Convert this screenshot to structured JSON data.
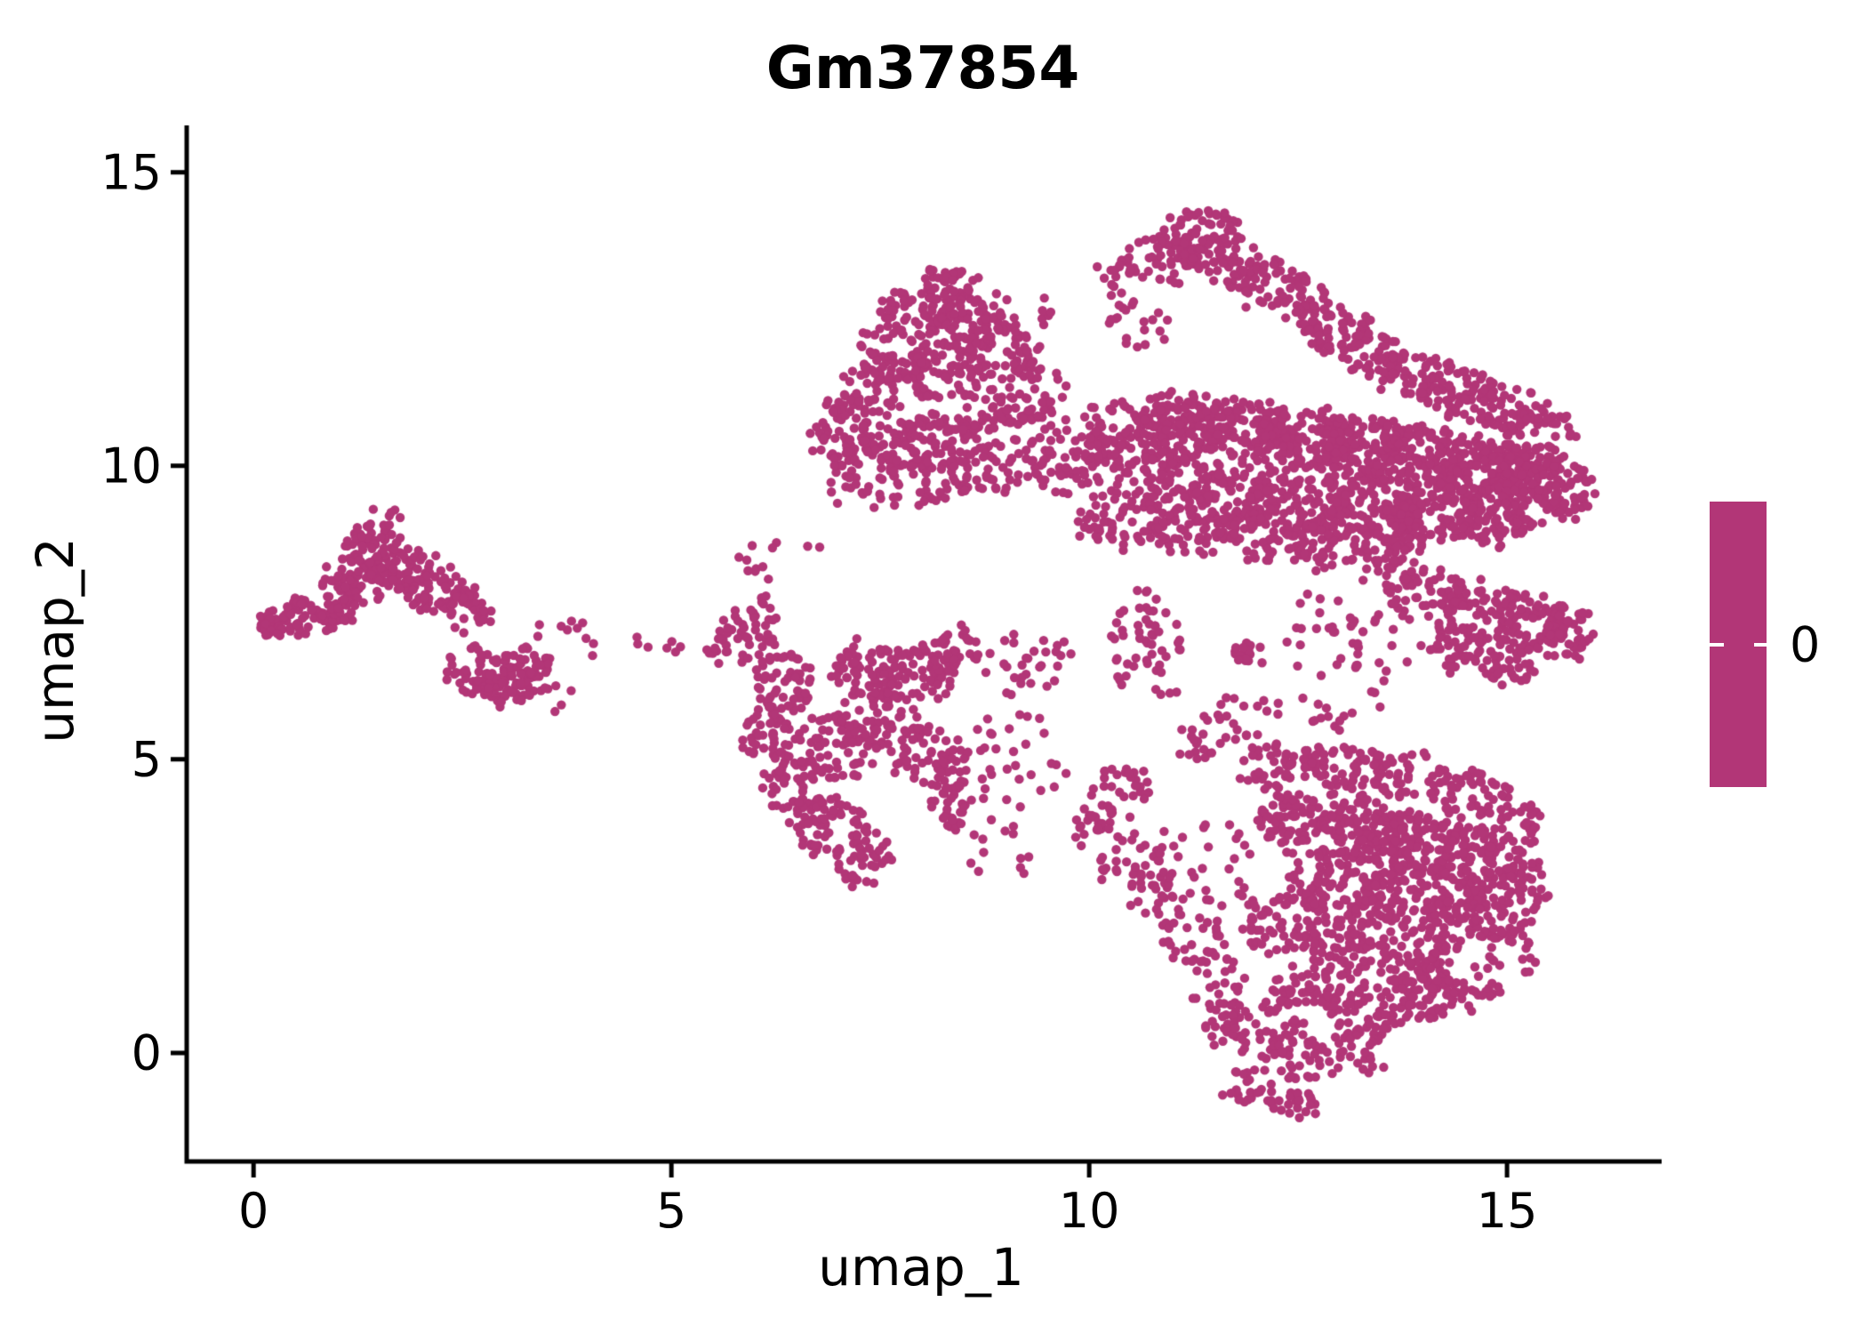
{
  "chart_data": {
    "type": "scatter",
    "title": "Gm37854",
    "xlabel": "umap_1",
    "ylabel": "umap_2",
    "xlim": [
      -0.8,
      16.85
    ],
    "ylim": [
      -1.85,
      15.8
    ],
    "xticks": [
      0,
      5,
      10,
      15
    ],
    "yticks": [
      0,
      5,
      10,
      15
    ],
    "grid": false,
    "point_color": "#b23677",
    "point_radius_px": 5.2,
    "axis_color": "#000000",
    "background_color": "#ffffff",
    "colorbar": {
      "present": true,
      "color": "#b23677",
      "tick_label": "0",
      "position": "right"
    },
    "cluster_format": [
      "cx",
      "cy",
      "rx",
      "ry",
      "n"
    ],
    "clusters": [
      [
        0.35,
        7.3,
        0.28,
        0.22,
        45
      ],
      [
        0.75,
        7.5,
        0.4,
        0.3,
        55
      ],
      [
        1.2,
        8.0,
        0.4,
        0.45,
        60
      ],
      [
        1.4,
        8.65,
        0.35,
        0.4,
        55
      ],
      [
        1.6,
        9.15,
        0.25,
        0.12,
        6
      ],
      [
        1.75,
        8.25,
        0.45,
        0.4,
        65
      ],
      [
        2.2,
        7.9,
        0.45,
        0.4,
        60
      ],
      [
        2.55,
        7.5,
        0.3,
        0.3,
        30
      ],
      [
        2.7,
        6.5,
        0.4,
        0.45,
        55
      ],
      [
        3.05,
        6.25,
        0.4,
        0.35,
        55
      ],
      [
        3.35,
        6.65,
        0.25,
        0.3,
        25
      ],
      [
        3.9,
        7.1,
        0.55,
        0.35,
        10
      ],
      [
        3.55,
        6.05,
        0.3,
        0.25,
        8
      ],
      [
        4.6,
        6.95,
        0.15,
        0.12,
        3
      ],
      [
        5.95,
        7.2,
        0.3,
        0.6,
        40
      ],
      [
        5.6,
        6.9,
        0.18,
        0.35,
        15
      ],
      [
        5.05,
        6.9,
        0.12,
        0.12,
        4
      ],
      [
        6.35,
        6.3,
        0.4,
        0.5,
        55
      ],
      [
        6.2,
        5.4,
        0.35,
        0.5,
        45
      ],
      [
        6.5,
        4.6,
        0.4,
        0.5,
        50
      ],
      [
        6.9,
        3.85,
        0.45,
        0.5,
        55
      ],
      [
        7.3,
        3.3,
        0.35,
        0.45,
        40
      ],
      [
        7.0,
        5.2,
        0.5,
        0.6,
        65
      ],
      [
        7.55,
        5.7,
        0.5,
        0.6,
        65
      ],
      [
        7.35,
        6.6,
        0.45,
        0.5,
        55
      ],
      [
        7.9,
        6.35,
        0.45,
        0.5,
        55
      ],
      [
        8.1,
        5.0,
        0.45,
        0.6,
        55
      ],
      [
        8.35,
        4.2,
        0.3,
        0.4,
        30
      ],
      [
        8.3,
        6.9,
        0.4,
        0.4,
        40
      ],
      [
        9.0,
        5.1,
        0.8,
        0.8,
        35
      ],
      [
        9.35,
        6.6,
        0.6,
        0.6,
        30
      ],
      [
        8.9,
        3.6,
        0.5,
        0.7,
        14
      ],
      [
        6.3,
        8.5,
        0.7,
        0.4,
        12
      ],
      [
        8.35,
        13.05,
        0.4,
        0.3,
        45
      ],
      [
        8.0,
        12.65,
        0.5,
        0.4,
        60
      ],
      [
        8.65,
        12.4,
        0.5,
        0.4,
        55
      ],
      [
        7.7,
        11.9,
        0.5,
        0.5,
        60
      ],
      [
        8.3,
        11.6,
        0.55,
        0.5,
        70
      ],
      [
        8.95,
        11.9,
        0.45,
        0.45,
        50
      ],
      [
        7.3,
        11.15,
        0.45,
        0.5,
        50
      ],
      [
        7.05,
        10.45,
        0.35,
        0.55,
        45
      ],
      [
        7.6,
        10.3,
        0.5,
        0.5,
        60
      ],
      [
        8.25,
        10.5,
        0.5,
        0.5,
        60
      ],
      [
        8.85,
        10.75,
        0.5,
        0.5,
        55
      ],
      [
        9.3,
        11.25,
        0.4,
        0.5,
        40
      ],
      [
        9.15,
        12.6,
        0.4,
        0.4,
        18
      ],
      [
        7.95,
        9.7,
        0.6,
        0.4,
        50
      ],
      [
        8.8,
        9.9,
        0.5,
        0.4,
        45
      ],
      [
        7.2,
        9.55,
        0.4,
        0.3,
        14
      ],
      [
        9.85,
        10.15,
        0.6,
        0.65,
        85
      ],
      [
        10.5,
        10.55,
        0.6,
        0.6,
        90
      ],
      [
        11.15,
        10.7,
        0.6,
        0.55,
        100
      ],
      [
        11.85,
        10.6,
        0.6,
        0.55,
        110
      ],
      [
        12.55,
        10.45,
        0.6,
        0.55,
        115
      ],
      [
        13.25,
        10.3,
        0.6,
        0.55,
        125
      ],
      [
        13.95,
        10.15,
        0.6,
        0.55,
        125
      ],
      [
        14.65,
        10.0,
        0.6,
        0.5,
        125
      ],
      [
        15.25,
        9.9,
        0.5,
        0.5,
        105
      ],
      [
        15.7,
        9.55,
        0.35,
        0.5,
        60
      ],
      [
        10.95,
        9.7,
        0.6,
        0.5,
        80
      ],
      [
        11.75,
        9.5,
        0.6,
        0.5,
        90
      ],
      [
        12.55,
        9.4,
        0.6,
        0.5,
        100
      ],
      [
        13.35,
        9.3,
        0.6,
        0.5,
        105
      ],
      [
        14.15,
        9.2,
        0.6,
        0.45,
        105
      ],
      [
        14.9,
        9.1,
        0.5,
        0.45,
        85
      ],
      [
        10.35,
        9.1,
        0.5,
        0.5,
        55
      ],
      [
        11.2,
        8.9,
        0.5,
        0.45,
        55
      ],
      [
        12.0,
        8.8,
        0.5,
        0.45,
        55
      ],
      [
        12.8,
        8.65,
        0.5,
        0.4,
        55
      ],
      [
        13.6,
        8.6,
        0.45,
        0.35,
        45
      ],
      [
        11.35,
        14.0,
        0.5,
        0.35,
        55
      ],
      [
        10.85,
        13.5,
        0.45,
        0.4,
        50
      ],
      [
        11.6,
        13.5,
        0.5,
        0.4,
        55
      ],
      [
        12.15,
        13.1,
        0.45,
        0.4,
        45
      ],
      [
        12.6,
        12.7,
        0.4,
        0.4,
        40
      ],
      [
        13.0,
        12.3,
        0.4,
        0.4,
        40
      ],
      [
        13.4,
        11.9,
        0.45,
        0.4,
        45
      ],
      [
        13.85,
        11.55,
        0.5,
        0.4,
        50
      ],
      [
        14.35,
        11.25,
        0.5,
        0.4,
        50
      ],
      [
        14.9,
        11.0,
        0.5,
        0.4,
        50
      ],
      [
        15.4,
        10.65,
        0.4,
        0.4,
        40
      ],
      [
        10.3,
        13.1,
        0.3,
        0.4,
        15
      ],
      [
        10.5,
        12.4,
        0.45,
        0.45,
        18
      ],
      [
        14.05,
        7.8,
        0.5,
        0.5,
        55
      ],
      [
        14.7,
        7.55,
        0.5,
        0.5,
        65
      ],
      [
        15.3,
        7.3,
        0.45,
        0.5,
        65
      ],
      [
        15.75,
        7.15,
        0.3,
        0.45,
        40
      ],
      [
        14.35,
        6.9,
        0.4,
        0.4,
        40
      ],
      [
        15.05,
        6.65,
        0.4,
        0.35,
        40
      ],
      [
        13.55,
        8.2,
        0.35,
        0.3,
        20
      ],
      [
        13.4,
        7.0,
        0.5,
        0.6,
        15
      ],
      [
        10.7,
        6.9,
        0.45,
        1.1,
        55
      ],
      [
        11.85,
        6.8,
        0.18,
        0.15,
        14
      ],
      [
        12.7,
        6.3,
        0.9,
        0.9,
        30
      ],
      [
        11.6,
        5.6,
        0.5,
        0.5,
        20
      ],
      [
        12.9,
        7.5,
        0.6,
        0.4,
        16
      ],
      [
        12.3,
        4.85,
        0.5,
        0.4,
        50
      ],
      [
        13.05,
        4.9,
        0.5,
        0.4,
        50
      ],
      [
        13.85,
        4.7,
        0.5,
        0.4,
        45
      ],
      [
        14.55,
        4.45,
        0.45,
        0.4,
        42
      ],
      [
        12.6,
        3.95,
        0.6,
        0.55,
        90
      ],
      [
        13.35,
        3.8,
        0.6,
        0.55,
        100
      ],
      [
        14.05,
        3.6,
        0.6,
        0.55,
        105
      ],
      [
        14.65,
        3.3,
        0.5,
        0.55,
        95
      ],
      [
        13.0,
        2.9,
        0.6,
        0.55,
        100
      ],
      [
        13.8,
        2.6,
        0.6,
        0.55,
        105
      ],
      [
        14.5,
        2.3,
        0.5,
        0.5,
        88
      ],
      [
        12.35,
        2.2,
        0.5,
        0.55,
        68
      ],
      [
        13.1,
        1.8,
        0.5,
        0.5,
        78
      ],
      [
        13.9,
        1.45,
        0.5,
        0.5,
        75
      ],
      [
        12.65,
        1.0,
        0.45,
        0.5,
        58
      ],
      [
        13.35,
        0.7,
        0.45,
        0.45,
        55
      ],
      [
        14.05,
        0.95,
        0.4,
        0.45,
        48
      ],
      [
        12.05,
        0.35,
        0.4,
        0.5,
        38
      ],
      [
        12.6,
        -0.1,
        0.4,
        0.4,
        36
      ],
      [
        13.2,
        0.0,
        0.35,
        0.4,
        28
      ],
      [
        11.95,
        -0.6,
        0.4,
        0.3,
        26
      ],
      [
        12.45,
        -0.85,
        0.35,
        0.22,
        20
      ],
      [
        15.05,
        3.9,
        0.35,
        0.55,
        40
      ],
      [
        15.25,
        2.9,
        0.3,
        0.55,
        34
      ],
      [
        15.1,
        1.8,
        0.35,
        0.5,
        30
      ],
      [
        14.6,
        1.1,
        0.35,
        0.4,
        26
      ],
      [
        10.35,
        4.45,
        0.4,
        0.4,
        30
      ],
      [
        10.05,
        3.9,
        0.3,
        0.4,
        24
      ],
      [
        10.45,
        3.3,
        0.35,
        0.45,
        28
      ],
      [
        10.85,
        2.7,
        0.35,
        0.5,
        28
      ],
      [
        11.25,
        2.0,
        0.35,
        0.5,
        28
      ],
      [
        11.5,
        1.2,
        0.35,
        0.5,
        26
      ],
      [
        11.65,
        0.45,
        0.3,
        0.4,
        22
      ],
      [
        11.6,
        3.3,
        0.8,
        0.9,
        30
      ],
      [
        11.3,
        5.3,
        0.5,
        0.3,
        12
      ]
    ]
  }
}
